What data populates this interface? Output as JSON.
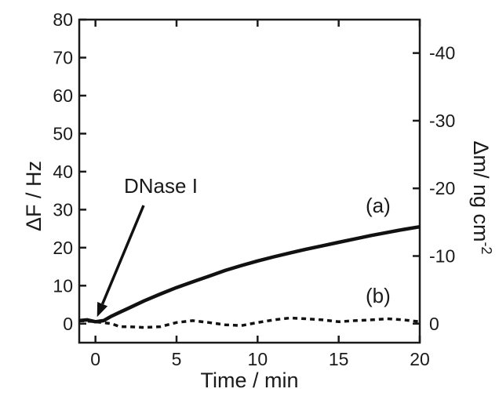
{
  "chart_data": {
    "type": "line",
    "xlabel": "Time / min",
    "ylabel_left": "ΔF / Hz",
    "ylabel_right": "Δm/ ng cm",
    "ylabel_right_sup": "-2",
    "xlim": [
      -1,
      20
    ],
    "ylim_left": [
      -5,
      80
    ],
    "x_ticks": [
      {
        "value": 0,
        "label": "0"
      },
      {
        "value": 5,
        "label": "5"
      },
      {
        "value": 10,
        "label": "10"
      },
      {
        "value": 15,
        "label": "15"
      },
      {
        "value": 20,
        "label": "20"
      }
    ],
    "y_left_ticks": [
      {
        "value": 0,
        "label": "0"
      },
      {
        "value": 10,
        "label": "10"
      },
      {
        "value": 20,
        "label": "20"
      },
      {
        "value": 30,
        "label": "30"
      },
      {
        "value": 40,
        "label": "40"
      },
      {
        "value": 50,
        "label": "50"
      },
      {
        "value": 60,
        "label": "60"
      },
      {
        "value": 70,
        "label": "70"
      },
      {
        "value": 80,
        "label": "80"
      }
    ],
    "y_right_ticks": [
      {
        "value": 0,
        "label": "0"
      },
      {
        "value": 17.8,
        "label": "-10"
      },
      {
        "value": 35.6,
        "label": "-20"
      },
      {
        "value": 53.4,
        "label": "-30"
      },
      {
        "value": 71.2,
        "label": "-40"
      }
    ],
    "series": [
      {
        "label": "(a)",
        "style": "solid",
        "x": [
          -1,
          -0.5,
          0,
          0.5,
          1,
          1.5,
          2,
          3,
          4,
          5,
          6,
          7,
          8,
          9,
          10,
          11,
          12,
          13,
          14,
          15,
          16,
          17,
          18,
          19,
          20
        ],
        "y": [
          0.8,
          1.0,
          0.5,
          0.8,
          2.0,
          3.0,
          4.0,
          6.0,
          7.8,
          9.5,
          11.0,
          12.5,
          14.0,
          15.3,
          16.5,
          17.6,
          18.6,
          19.6,
          20.5,
          21.4,
          22.3,
          23.2,
          24.0,
          24.8,
          25.5
        ]
      },
      {
        "label": "(b)",
        "style": "dashed",
        "x": [
          -1,
          0,
          1,
          1.5,
          2,
          3,
          4,
          5,
          6,
          7,
          8,
          9,
          10,
          11,
          12,
          13,
          14,
          15,
          16,
          17,
          18,
          19,
          20
        ],
        "y": [
          0.8,
          0.5,
          0.0,
          -0.8,
          -0.8,
          -1.0,
          -0.8,
          0.3,
          0.8,
          0.3,
          -0.3,
          -0.5,
          0.3,
          1.0,
          1.5,
          1.3,
          1.0,
          0.5,
          0.8,
          1.0,
          1.3,
          1.0,
          0.5
        ]
      }
    ],
    "annotations": [
      {
        "text": "DNase I",
        "arrow_to": {
          "x": 0,
          "y": 0.5
        }
      },
      {
        "text": "(a)"
      },
      {
        "text": "(b)"
      }
    ],
    "grid": false,
    "legend": "none"
  }
}
